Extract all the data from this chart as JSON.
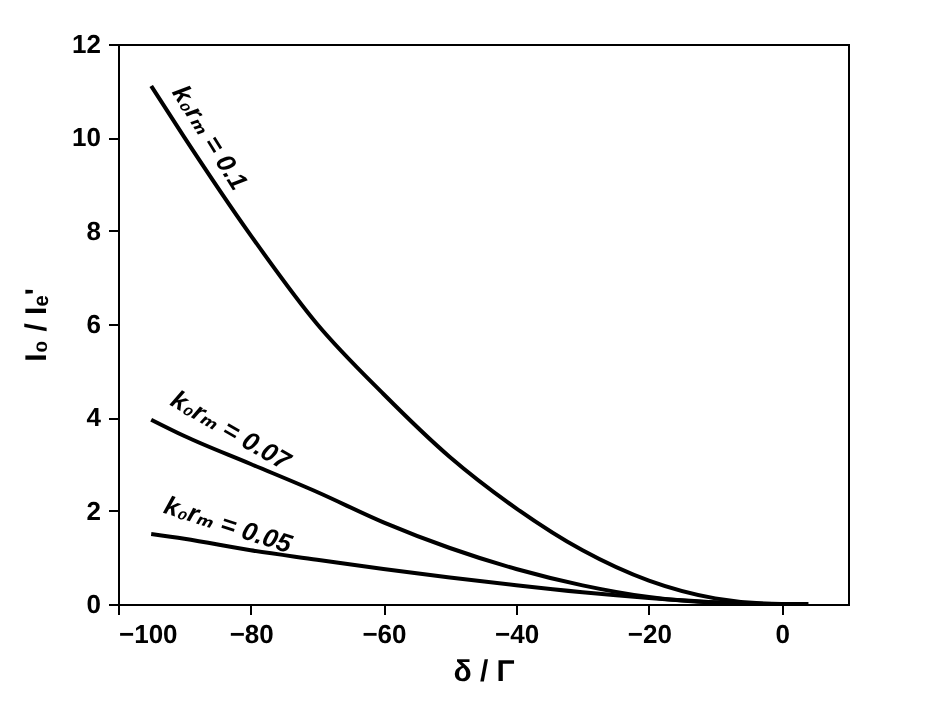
{
  "chart_data": {
    "type": "line",
    "xlabel": "δ / Γ",
    "ylabel": "I₀ / Iₑ'",
    "xlim": [
      -100,
      10
    ],
    "xticks": [
      -100,
      -80,
      -60,
      -40,
      -20,
      0
    ],
    "ylim": [
      0,
      12
    ],
    "yticks": [
      0,
      2,
      4,
      6,
      8,
      10,
      12
    ],
    "grid": false,
    "x": [
      -95,
      -90,
      -80,
      -70,
      -60,
      -50,
      -40,
      -30,
      -20,
      -10,
      0,
      4
    ],
    "series": [
      {
        "name": "k₀rₘ = 0.1",
        "color": "#000000",
        "values": [
          11.1,
          10.0,
          7.9,
          6.0,
          4.5,
          3.15,
          2.05,
          1.15,
          0.5,
          0.12,
          0,
          0
        ]
      },
      {
        "name": "k₀rₘ = 0.07",
        "color": "#000000",
        "values": [
          3.95,
          3.6,
          3.0,
          2.4,
          1.75,
          1.2,
          0.75,
          0.4,
          0.15,
          0.03,
          0,
          0
        ]
      },
      {
        "name": "k₀rₘ = 0.05",
        "color": "#000000",
        "values": [
          1.5,
          1.4,
          1.15,
          0.95,
          0.75,
          0.57,
          0.4,
          0.25,
          0.13,
          0.04,
          0,
          0
        ]
      }
    ]
  }
}
